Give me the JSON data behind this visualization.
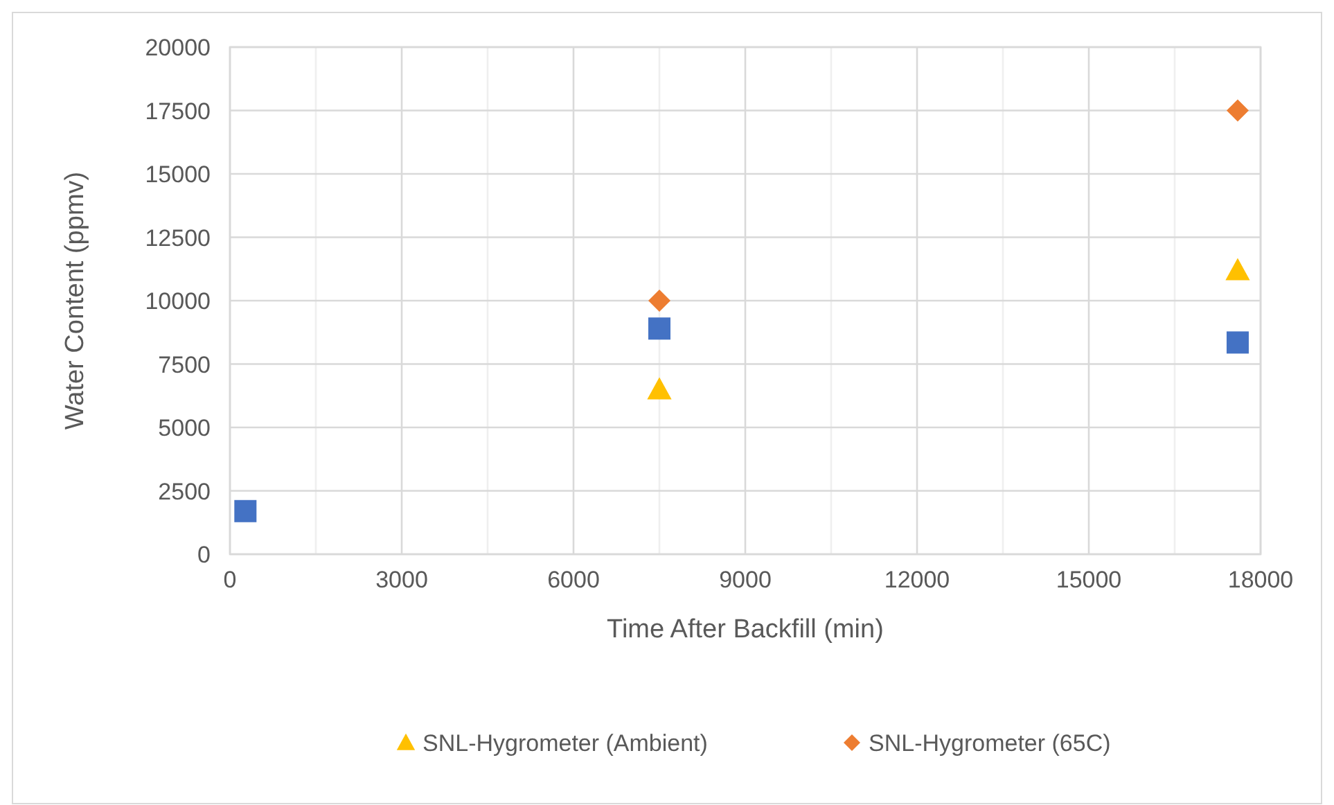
{
  "chart_data": {
    "type": "scatter",
    "xlabel": "Time After Backfill (min)",
    "ylabel": "Water Content (ppmv)",
    "xlim": [
      0,
      18000
    ],
    "xticks": [
      0,
      {
        "value": 1500,
        "label": null
      },
      3000,
      {
        "value": 4500,
        "label": null
      },
      6000,
      {
        "value": 7500,
        "label": null
      },
      9000,
      {
        "value": 10500,
        "label": null
      },
      12000,
      {
        "value": 13500,
        "label": null
      },
      15000,
      {
        "value": 16500,
        "label": null
      },
      18000
    ],
    "ylim": [
      0,
      20000
    ],
    "yticks": [
      0,
      2500,
      5000,
      7500,
      10000,
      12500,
      15000,
      17500,
      20000
    ],
    "grid": true,
    "legend": "bottom",
    "series": [
      {
        "color": "#4472c4",
        "marker": "square",
        "x": [
          270,
          7500,
          17600
        ],
        "values": [
          1700,
          8900,
          8350
        ]
      },
      {
        "name": "SNL-Hygrometer (Ambient)",
        "color": "#ffc000",
        "marker": "triangle",
        "x": [
          7500,
          17600
        ],
        "values": [
          6500,
          11200
        ]
      },
      {
        "name": "SNL-Hygrometer (65C)",
        "color": "#ed7d31",
        "marker": "diamond",
        "x": [
          7500,
          17600
        ],
        "values": [
          10000,
          17500
        ]
      }
    ]
  }
}
